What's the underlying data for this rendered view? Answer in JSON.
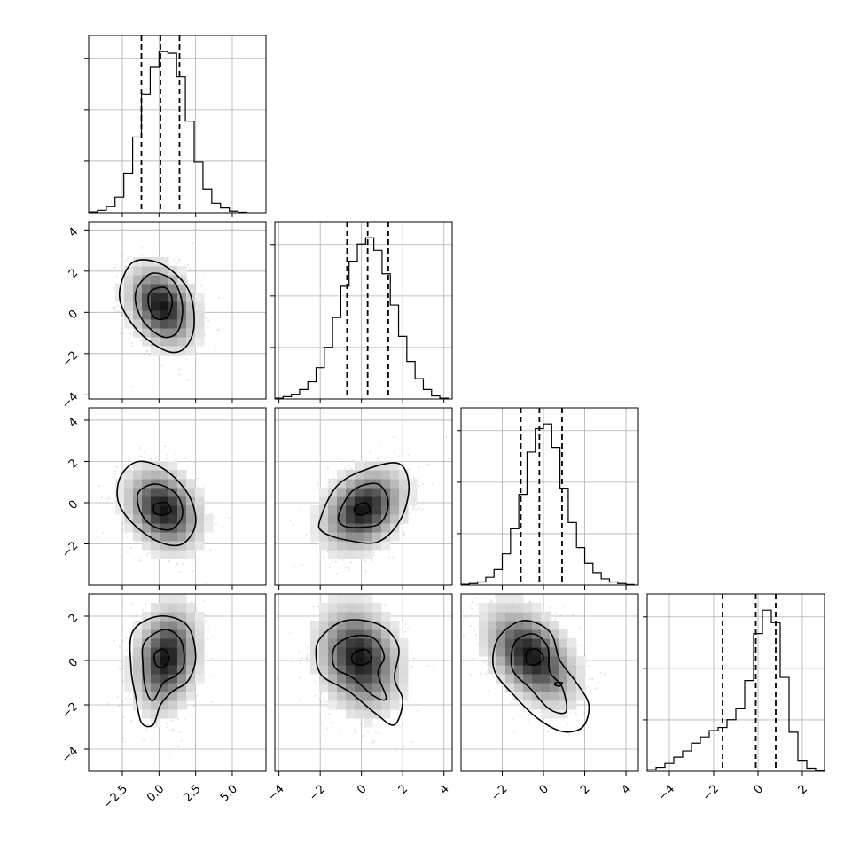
{
  "chart_data": {
    "type": "corner",
    "n_params": 4,
    "title": "",
    "quantiles": [
      0.16,
      0.5,
      0.84
    ],
    "grid": true,
    "params": [
      {
        "label": "",
        "range": [
          -4.8,
          7.3
        ],
        "ticks": [
          -2.5,
          0.0,
          2.5,
          5.0
        ],
        "tick_labels": [
          "−2.5",
          "0.0",
          "2.5",
          "5.0"
        ],
        "hist_y_ticks_fraction": [
          0.33,
          0.66,
          0.99
        ],
        "hist": {
          "bin_edges": [
            -4.8,
            -4.2,
            -3.6,
            -3.0,
            -2.4,
            -1.8,
            -1.2,
            -0.6,
            0.0,
            0.6,
            1.2,
            1.8,
            2.4,
            3.0,
            3.6,
            4.2,
            4.8,
            5.4,
            6.0
          ],
          "counts": [
            0.5,
            1.5,
            4,
            10,
            25,
            48,
            75,
            92,
            102,
            101,
            86,
            58,
            32,
            15,
            6,
            3,
            1,
            0.3
          ]
        },
        "quantile_values": [
          -1.2,
          0.1,
          1.4
        ]
      },
      {
        "label": "",
        "range": [
          -4.2,
          4.4
        ],
        "ticks": [
          -4,
          -2,
          0,
          2,
          4
        ],
        "tick_labels": [
          "−4",
          "−2",
          "0",
          "2",
          "4"
        ],
        "hist_y_ticks_fraction": [
          0.33,
          0.66,
          0.99
        ],
        "hist": {
          "bin_edges": [
            -4.2,
            -3.8,
            -3.4,
            -3.0,
            -2.6,
            -2.2,
            -1.8,
            -1.4,
            -1.0,
            -0.6,
            -0.2,
            0.2,
            0.6,
            1.0,
            1.4,
            1.8,
            2.2,
            2.6,
            3.0,
            3.4,
            3.8,
            4.2
          ],
          "counts": [
            0.5,
            1.5,
            3,
            6,
            11,
            20,
            33,
            52,
            72,
            88,
            99,
            103,
            95,
            80,
            60,
            40,
            24,
            13,
            6,
            2,
            0.5
          ]
        },
        "quantile_values": [
          -0.7,
          0.3,
          1.3
        ]
      },
      {
        "label": "",
        "range": [
          -4.0,
          4.6
        ],
        "ticks": [
          -2,
          0,
          2,
          4
        ],
        "tick_labels": [
          "−2",
          "0",
          "2",
          "4"
        ],
        "hist_y_ticks_fraction": [
          0.33,
          0.66,
          0.99
        ],
        "hist": {
          "bin_edges": [
            -4.0,
            -3.6,
            -3.2,
            -2.8,
            -2.4,
            -2.0,
            -1.6,
            -1.2,
            -0.8,
            -0.4,
            0.0,
            0.4,
            0.8,
            1.2,
            1.6,
            2.0,
            2.4,
            2.8,
            3.2,
            3.6,
            4.0,
            4.4
          ],
          "counts": [
            0.5,
            1,
            2,
            5,
            10,
            20,
            36,
            58,
            85,
            100,
            103,
            88,
            62,
            40,
            24,
            14,
            8,
            4,
            2,
            1,
            0.4
          ]
        },
        "quantile_values": [
          -1.1,
          -0.2,
          0.9
        ]
      },
      {
        "label": "",
        "range": [
          -5.0,
          3.0
        ],
        "ticks": [
          -4,
          -2,
          0,
          2
        ],
        "tick_labels": [
          "−4",
          "−2",
          "0",
          "2"
        ],
        "hist_y_ticks_fraction": [
          0.33,
          0.66,
          0.99
        ],
        "hist": {
          "bin_edges": [
            -5.0,
            -4.6,
            -4.2,
            -3.8,
            -3.4,
            -3.0,
            -2.6,
            -2.2,
            -1.8,
            -1.4,
            -1.0,
            -0.6,
            -0.2,
            0.2,
            0.6,
            1.0,
            1.4,
            1.8,
            2.2,
            2.6,
            3.0
          ],
          "counts": [
            1,
            2.5,
            5,
            9,
            13,
            18,
            22,
            26,
            28,
            33,
            40,
            58,
            88,
            103,
            95,
            60,
            25,
            7,
            2,
            0.5
          ]
        },
        "quantile_values": [
          -1.6,
          -0.1,
          0.8
        ]
      }
    ],
    "pair_ranges_y": {
      "1": {
        "range": [
          -4.2,
          4.4
        ],
        "ticks": [
          -4,
          -2,
          0,
          2,
          4
        ],
        "tick_labels": [
          "−4",
          "−2",
          "0",
          "2",
          "4"
        ]
      },
      "2": {
        "range": [
          -4.0,
          4.6
        ],
        "ticks": [
          -2,
          0,
          2,
          4
        ],
        "tick_labels": [
          "−2",
          "0",
          "2",
          "4"
        ]
      },
      "3": {
        "range": [
          -5.0,
          3.0
        ],
        "ticks": [
          -4,
          -2,
          0,
          2
        ],
        "tick_labels": [
          "−4",
          "−2",
          "0",
          "2"
        ]
      }
    },
    "pairs": [
      {
        "row": 1,
        "col": 0,
        "center": [
          0.2,
          0.3
        ],
        "sd": [
          1.3,
          1.1
        ],
        "rho": -0.3,
        "contours": [
          [
            [
              -2.5,
              1.6
            ],
            [
              -1.6,
              2.5
            ],
            [
              0.3,
              2.3
            ],
            [
              2.0,
              1.1
            ],
            [
              2.4,
              -0.6
            ],
            [
              1.8,
              -1.7
            ],
            [
              0.6,
              -1.9
            ],
            [
              -1.3,
              -1.0
            ],
            [
              -2.6,
              0.4
            ]
          ],
          [
            [
              -1.4,
              1.3
            ],
            [
              -0.4,
              1.9
            ],
            [
              1.0,
              1.5
            ],
            [
              1.6,
              0.3
            ],
            [
              1.3,
              -0.9
            ],
            [
              0.3,
              -1.2
            ],
            [
              -1.0,
              -0.5
            ],
            [
              -1.6,
              0.5
            ]
          ],
          [
            [
              -0.6,
              1.0
            ],
            [
              0.4,
              1.2
            ],
            [
              0.9,
              0.6
            ],
            [
              0.6,
              -0.2
            ],
            [
              -0.2,
              -0.3
            ],
            [
              -0.7,
              0.3
            ]
          ]
        ]
      },
      {
        "row": 2,
        "col": 0,
        "center": [
          0.3,
          -0.3
        ],
        "sd": [
          1.4,
          1.1
        ],
        "rho": -0.25,
        "contours": [
          [
            [
              -2.6,
              1.3
            ],
            [
              -1.4,
              2.0
            ],
            [
              0.4,
              1.6
            ],
            [
              2.0,
              0.4
            ],
            [
              2.5,
              -1.0
            ],
            [
              1.6,
              -2.0
            ],
            [
              0.0,
              -1.9
            ],
            [
              -1.8,
              -1.0
            ],
            [
              -2.8,
              0.1
            ]
          ],
          [
            [
              -1.4,
              0.5
            ],
            [
              -0.2,
              0.9
            ],
            [
              1.2,
              0.4
            ],
            [
              1.6,
              -0.6
            ],
            [
              0.8,
              -1.3
            ],
            [
              -0.5,
              -1.1
            ],
            [
              -1.3,
              -0.4
            ]
          ],
          [
            [
              -0.3,
              -0.1
            ],
            [
              0.5,
              0.0
            ],
            [
              0.8,
              -0.4
            ],
            [
              0.3,
              -0.6
            ],
            [
              -0.3,
              -0.5
            ]
          ]
        ]
      },
      {
        "row": 2,
        "col": 1,
        "center": [
          0.1,
          -0.3
        ],
        "sd": [
          1.1,
          1.1
        ],
        "rho": 0.3,
        "contours": [
          [
            [
              -2.0,
              -0.8
            ],
            [
              -1.2,
              0.8
            ],
            [
              0.2,
              1.6
            ],
            [
              1.8,
              1.9
            ],
            [
              2.3,
              0.8
            ],
            [
              1.9,
              -0.8
            ],
            [
              0.8,
              -1.9
            ],
            [
              -0.8,
              -1.8
            ],
            [
              -1.9,
              -1.4
            ]
          ],
          [
            [
              -1.1,
              -0.6
            ],
            [
              -0.4,
              0.6
            ],
            [
              0.8,
              0.9
            ],
            [
              1.3,
              0.0
            ],
            [
              0.9,
              -1.0
            ],
            [
              -0.2,
              -1.2
            ],
            [
              -0.9,
              -1.1
            ]
          ],
          [
            [
              -0.3,
              -0.2
            ],
            [
              0.2,
              0.0
            ],
            [
              0.4,
              -0.4
            ],
            [
              0.0,
              -0.6
            ],
            [
              -0.3,
              -0.5
            ]
          ]
        ]
      },
      {
        "row": 3,
        "col": 0,
        "center": [
          0.5,
          0.1
        ],
        "sd": [
          1.2,
          1.3
        ],
        "rho": 0.2,
        "contours": [
          [
            [
              -1.8,
              1.3
            ],
            [
              0.0,
              2.0
            ],
            [
              1.9,
              1.6
            ],
            [
              2.5,
              0.2
            ],
            [
              2.0,
              -0.9
            ],
            [
              0.9,
              -1.4
            ],
            [
              0.1,
              -2.0
            ],
            [
              -0.4,
              -2.9
            ],
            [
              -1.2,
              -2.8
            ],
            [
              -1.6,
              -1.6
            ],
            [
              -1.9,
              -0.4
            ]
          ],
          [
            [
              -1.0,
              0.8
            ],
            [
              0.4,
              1.4
            ],
            [
              1.5,
              0.9
            ],
            [
              1.7,
              -0.2
            ],
            [
              1.1,
              -0.7
            ],
            [
              0.3,
              -1.0
            ],
            [
              -0.4,
              -1.8
            ],
            [
              -0.9,
              -1.3
            ],
            [
              -1.1,
              -0.2
            ]
          ],
          [
            [
              -0.3,
              0.3
            ],
            [
              0.3,
              0.5
            ],
            [
              0.7,
              0.1
            ],
            [
              0.3,
              -0.3
            ],
            [
              -0.2,
              -0.2
            ]
          ]
        ]
      },
      {
        "row": 3,
        "col": 1,
        "center": [
          -0.1,
          0.1
        ],
        "sd": [
          1.1,
          1.3
        ],
        "rho": -0.2,
        "contours": [
          [
            [
              -2.0,
              1.0
            ],
            [
              -0.8,
              1.8
            ],
            [
              0.9,
              1.6
            ],
            [
              1.8,
              0.6
            ],
            [
              1.6,
              -0.8
            ],
            [
              2.0,
              -1.8
            ],
            [
              1.6,
              -2.9
            ],
            [
              0.7,
              -2.4
            ],
            [
              -0.6,
              -1.4
            ],
            [
              -1.9,
              -0.7
            ],
            [
              -2.2,
              0.2
            ]
          ],
          [
            [
              -1.3,
              0.6
            ],
            [
              -0.4,
              1.1
            ],
            [
              0.6,
              1.0
            ],
            [
              1.1,
              0.2
            ],
            [
              0.8,
              -0.6
            ],
            [
              1.2,
              -1.7
            ],
            [
              0.6,
              -1.6
            ],
            [
              -0.4,
              -0.8
            ],
            [
              -1.3,
              -0.3
            ]
          ],
          [
            [
              -0.4,
              0.3
            ],
            [
              0.2,
              0.5
            ],
            [
              0.5,
              0.1
            ],
            [
              0.1,
              -0.2
            ],
            [
              -0.4,
              -0.1
            ]
          ]
        ]
      },
      {
        "row": 3,
        "col": 2,
        "center": [
          -0.6,
          0.2
        ],
        "sd": [
          1.2,
          1.2
        ],
        "rho": -0.45,
        "contours": [
          [
            [
              -2.2,
              1.0
            ],
            [
              -1.0,
              1.8
            ],
            [
              0.3,
              1.3
            ],
            [
              0.8,
              0.0
            ],
            [
              1.6,
              -1.0
            ],
            [
              2.2,
              -2.0
            ],
            [
              1.9,
              -3.0
            ],
            [
              0.9,
              -3.2
            ],
            [
              -0.3,
              -2.6
            ],
            [
              -1.4,
              -1.6
            ],
            [
              -2.4,
              -0.4
            ]
          ],
          [
            [
              -1.4,
              0.8
            ],
            [
              -0.5,
              1.2
            ],
            [
              0.2,
              0.6
            ],
            [
              0.3,
              -0.5
            ],
            [
              0.9,
              -1.2
            ],
            [
              1.1,
              -2.3
            ],
            [
              0.3,
              -2.2
            ],
            [
              -0.6,
              -1.3
            ],
            [
              -1.5,
              -0.4
            ]
          ],
          [
            [
              -0.8,
              0.4
            ],
            [
              -0.3,
              0.5
            ],
            [
              0.0,
              0.1
            ],
            [
              -0.4,
              -0.2
            ],
            [
              -0.8,
              -0.1
            ]
          ],
          [
            [
              0.6,
              -1.0
            ],
            [
              0.9,
              -1.0
            ],
            [
              0.8,
              -1.15
            ],
            [
              0.55,
              -1.1
            ]
          ]
        ]
      }
    ]
  }
}
